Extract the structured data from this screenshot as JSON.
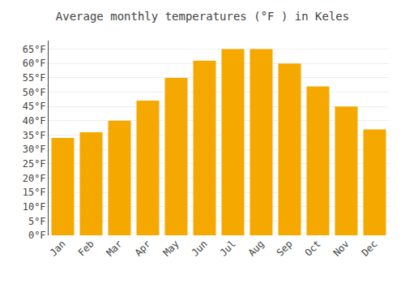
{
  "chart_data": {
    "type": "bar",
    "title": "Average monthly temperatures (°F ) in Keles",
    "categories": [
      "Jan",
      "Feb",
      "Mar",
      "Apr",
      "May",
      "Jun",
      "Jul",
      "Aug",
      "Sep",
      "Oct",
      "Nov",
      "Dec"
    ],
    "values": [
      34,
      36,
      40,
      47,
      55,
      61,
      65,
      65,
      60,
      52,
      45,
      37
    ],
    "color": "#F5A800",
    "ylim": [
      0,
      68
    ],
    "yticks": [
      {
        "value": 0,
        "label": "0°F"
      },
      {
        "value": 5,
        "label": "5°F"
      },
      {
        "value": 10,
        "label": "10°F"
      },
      {
        "value": 15,
        "label": "15°F"
      },
      {
        "value": 20,
        "label": "20°F"
      },
      {
        "value": 25,
        "label": "25°F"
      },
      {
        "value": 30,
        "label": "30°F"
      },
      {
        "value": 35,
        "label": "35°F"
      },
      {
        "value": 40,
        "label": "40°F"
      },
      {
        "value": 45,
        "label": "45°F"
      },
      {
        "value": 50,
        "label": "50°F"
      },
      {
        "value": 55,
        "label": "55°F"
      },
      {
        "value": 60,
        "label": "60°F"
      },
      {
        "value": 65,
        "label": "65°F"
      }
    ],
    "grid": true
  }
}
